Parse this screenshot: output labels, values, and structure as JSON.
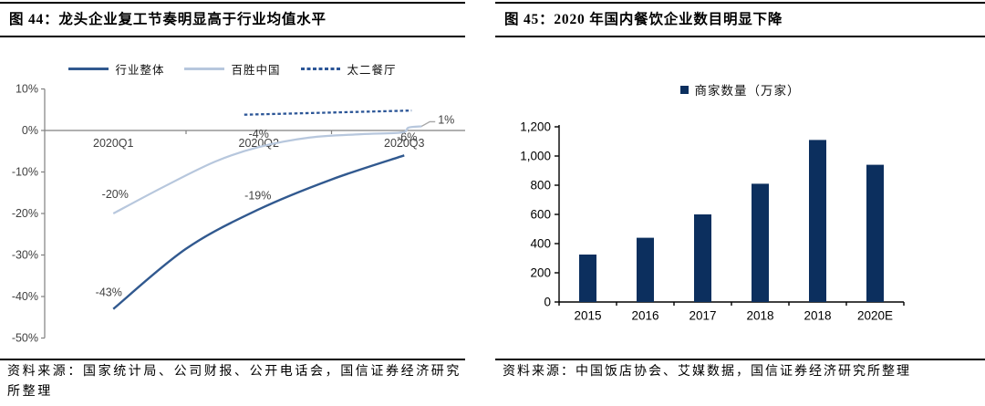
{
  "figures": [
    {
      "title": "图 44：龙头企业复工节奏明显高于行业均值水平",
      "source": "资料来源：国家统计局、公司财报、公开电话会，国信证券经济研究所整理"
    },
    {
      "title": "图 45：2020 年国内餐饮企业数目明显下降",
      "source": "资料来源：中国饭店协会、艾媒数据，国信证券经济研究所整理"
    }
  ],
  "chart_data": [
    {
      "type": "line",
      "title": "图 44：龙头企业复工节奏明显高于行业均值水平",
      "categories": [
        "2020Q1",
        "2020Q2",
        "2020Q3"
      ],
      "ylim": [
        -50,
        10
      ],
      "ytick_step": 10,
      "ytick_format": "percent",
      "grid": false,
      "legend_position": "top",
      "axis_color": "#808080",
      "label_color": "#404040",
      "series": [
        {
          "name": "行业整体",
          "color": "#31598F",
          "dash": false,
          "width": 2.4,
          "values": [
            -43,
            -19,
            -6
          ],
          "trace": [
            [
              0,
              -43
            ],
            [
              0.5,
              -28.5
            ],
            [
              1,
              -19
            ],
            [
              1.5,
              -11.8
            ],
            [
              2,
              -6
            ]
          ],
          "labels": [
            {
              "text": "-43%",
              "t": 0,
              "v": -43,
              "dx": -5,
              "dy": -18
            },
            {
              "text": "-19%",
              "t": 1,
              "v": -19,
              "dx": -1,
              "dy": -15
            },
            {
              "text": "-6%",
              "t": 2,
              "v": -6,
              "dx": 3,
              "dy": -20
            }
          ]
        },
        {
          "name": "百胜中国",
          "color": "#B7C7DD",
          "dash": false,
          "width": 2.2,
          "values": [
            -20,
            -4,
            1
          ],
          "trace": [
            [
              0,
              -20
            ],
            [
              0.35,
              -13.5
            ],
            [
              0.7,
              -7.5
            ],
            [
              1,
              -4
            ],
            [
              1.35,
              -1.7
            ],
            [
              1.7,
              -0.9
            ],
            [
              1.98,
              -0.5
            ],
            [
              2.03,
              0.7
            ],
            [
              2.12,
              1
            ]
          ],
          "labels": [
            {
              "text": "-20%",
              "t": 0,
              "v": -20,
              "dx": 2,
              "dy": -21
            },
            {
              "text": "-4%",
              "t": 1,
              "v": -4,
              "dx": 0,
              "dy": -14
            },
            {
              "text": "1%",
              "t": 2.1,
              "v": 1,
              "dx": 21,
              "dy": -7,
              "leader": true
            }
          ]
        },
        {
          "name": "太二餐厅",
          "color": "#2C5697",
          "dash": true,
          "width": 2.3,
          "values": [
            null,
            4,
            5
          ],
          "trace": [
            [
              0.9,
              3.8
            ],
            [
              2.05,
              4.8
            ]
          ],
          "labels": []
        }
      ]
    },
    {
      "type": "bar",
      "title": "图 45：2020 年国内餐饮企业数目明显下降",
      "legend": "商家数量（万家）",
      "categories": [
        "2015",
        "2016",
        "2017",
        "2018",
        "2018",
        "2020E"
      ],
      "values": [
        325,
        440,
        600,
        810,
        1110,
        940
      ],
      "ylim": [
        0,
        1200
      ],
      "ytick_step": 200,
      "bar_color": "#0C2F5E",
      "axis_color": "#000000",
      "grid": false,
      "legend_position": "top"
    }
  ]
}
